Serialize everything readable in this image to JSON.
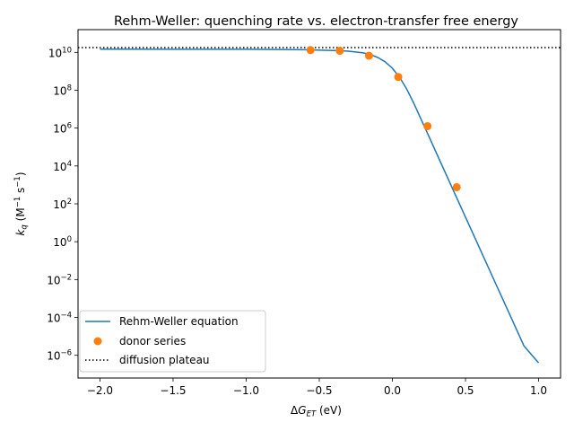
{
  "chart_data": {
    "type": "line",
    "title": "Rehm-Weller: quenching rate vs. electron-transfer free energy",
    "xlabel": "ΔG_ET (eV)",
    "ylabel": "k_q (M⁻¹ s⁻¹)",
    "xlim": [
      -2.15,
      1.15
    ],
    "ylim_log10": [
      -7.2,
      11.2
    ],
    "y_scale": "log",
    "grid": false,
    "legend_position": "lower-left",
    "x_ticks": [
      {
        "value": -2.0,
        "label": "−2.0"
      },
      {
        "value": -1.5,
        "label": "−1.5"
      },
      {
        "value": -1.0,
        "label": "−1.0"
      },
      {
        "value": -0.5,
        "label": "−0.5"
      },
      {
        "value": 0.0,
        "label": "0.0"
      },
      {
        "value": 0.5,
        "label": "0.5"
      },
      {
        "value": 1.0,
        "label": "1.0"
      }
    ],
    "y_ticks": [
      {
        "exp": 10,
        "label": "10",
        "sup": "10"
      },
      {
        "exp": 8,
        "label": "10",
        "sup": "8"
      },
      {
        "exp": 6,
        "label": "10",
        "sup": "6"
      },
      {
        "exp": 4,
        "label": "10",
        "sup": "4"
      },
      {
        "exp": 2,
        "label": "10",
        "sup": "2"
      },
      {
        "exp": 0,
        "label": "10",
        "sup": "0"
      },
      {
        "exp": -2,
        "label": "10",
        "sup": "−2"
      },
      {
        "exp": -4,
        "label": "10",
        "sup": "−4"
      },
      {
        "exp": -6,
        "label": "10",
        "sup": "−6"
      }
    ],
    "series": [
      {
        "name": "Rehm-Weller equation",
        "kind": "line",
        "color": "#1f77b4",
        "x": [
          -2.0,
          -1.5,
          -1.0,
          -0.8,
          -0.6,
          -0.4,
          -0.3,
          -0.2,
          -0.15,
          -0.1,
          -0.05,
          0.0,
          0.05,
          0.1,
          0.15,
          0.2,
          0.25,
          0.3,
          0.4,
          0.5,
          0.6,
          0.7,
          0.8,
          0.9,
          1.0
        ],
        "y_log10": [
          10.17,
          10.16,
          10.16,
          10.15,
          10.14,
          10.1,
          10.06,
          9.97,
          9.88,
          9.73,
          9.5,
          9.16,
          8.67,
          8.03,
          7.25,
          6.4,
          5.55,
          4.7,
          3.0,
          1.3,
          -0.4,
          -2.1,
          -3.8,
          -5.5,
          -6.4
        ]
      },
      {
        "name": "donor series",
        "kind": "scatter",
        "color": "#ff7f0e",
        "x": [
          -0.56,
          -0.36,
          -0.16,
          0.04,
          0.24,
          0.44
        ],
        "y_log10": [
          10.12,
          10.08,
          9.82,
          8.7,
          6.1,
          2.88
        ]
      },
      {
        "name": "diffusion plateau",
        "kind": "hline",
        "color": "#000000",
        "y_log10": 10.25
      }
    ]
  }
}
